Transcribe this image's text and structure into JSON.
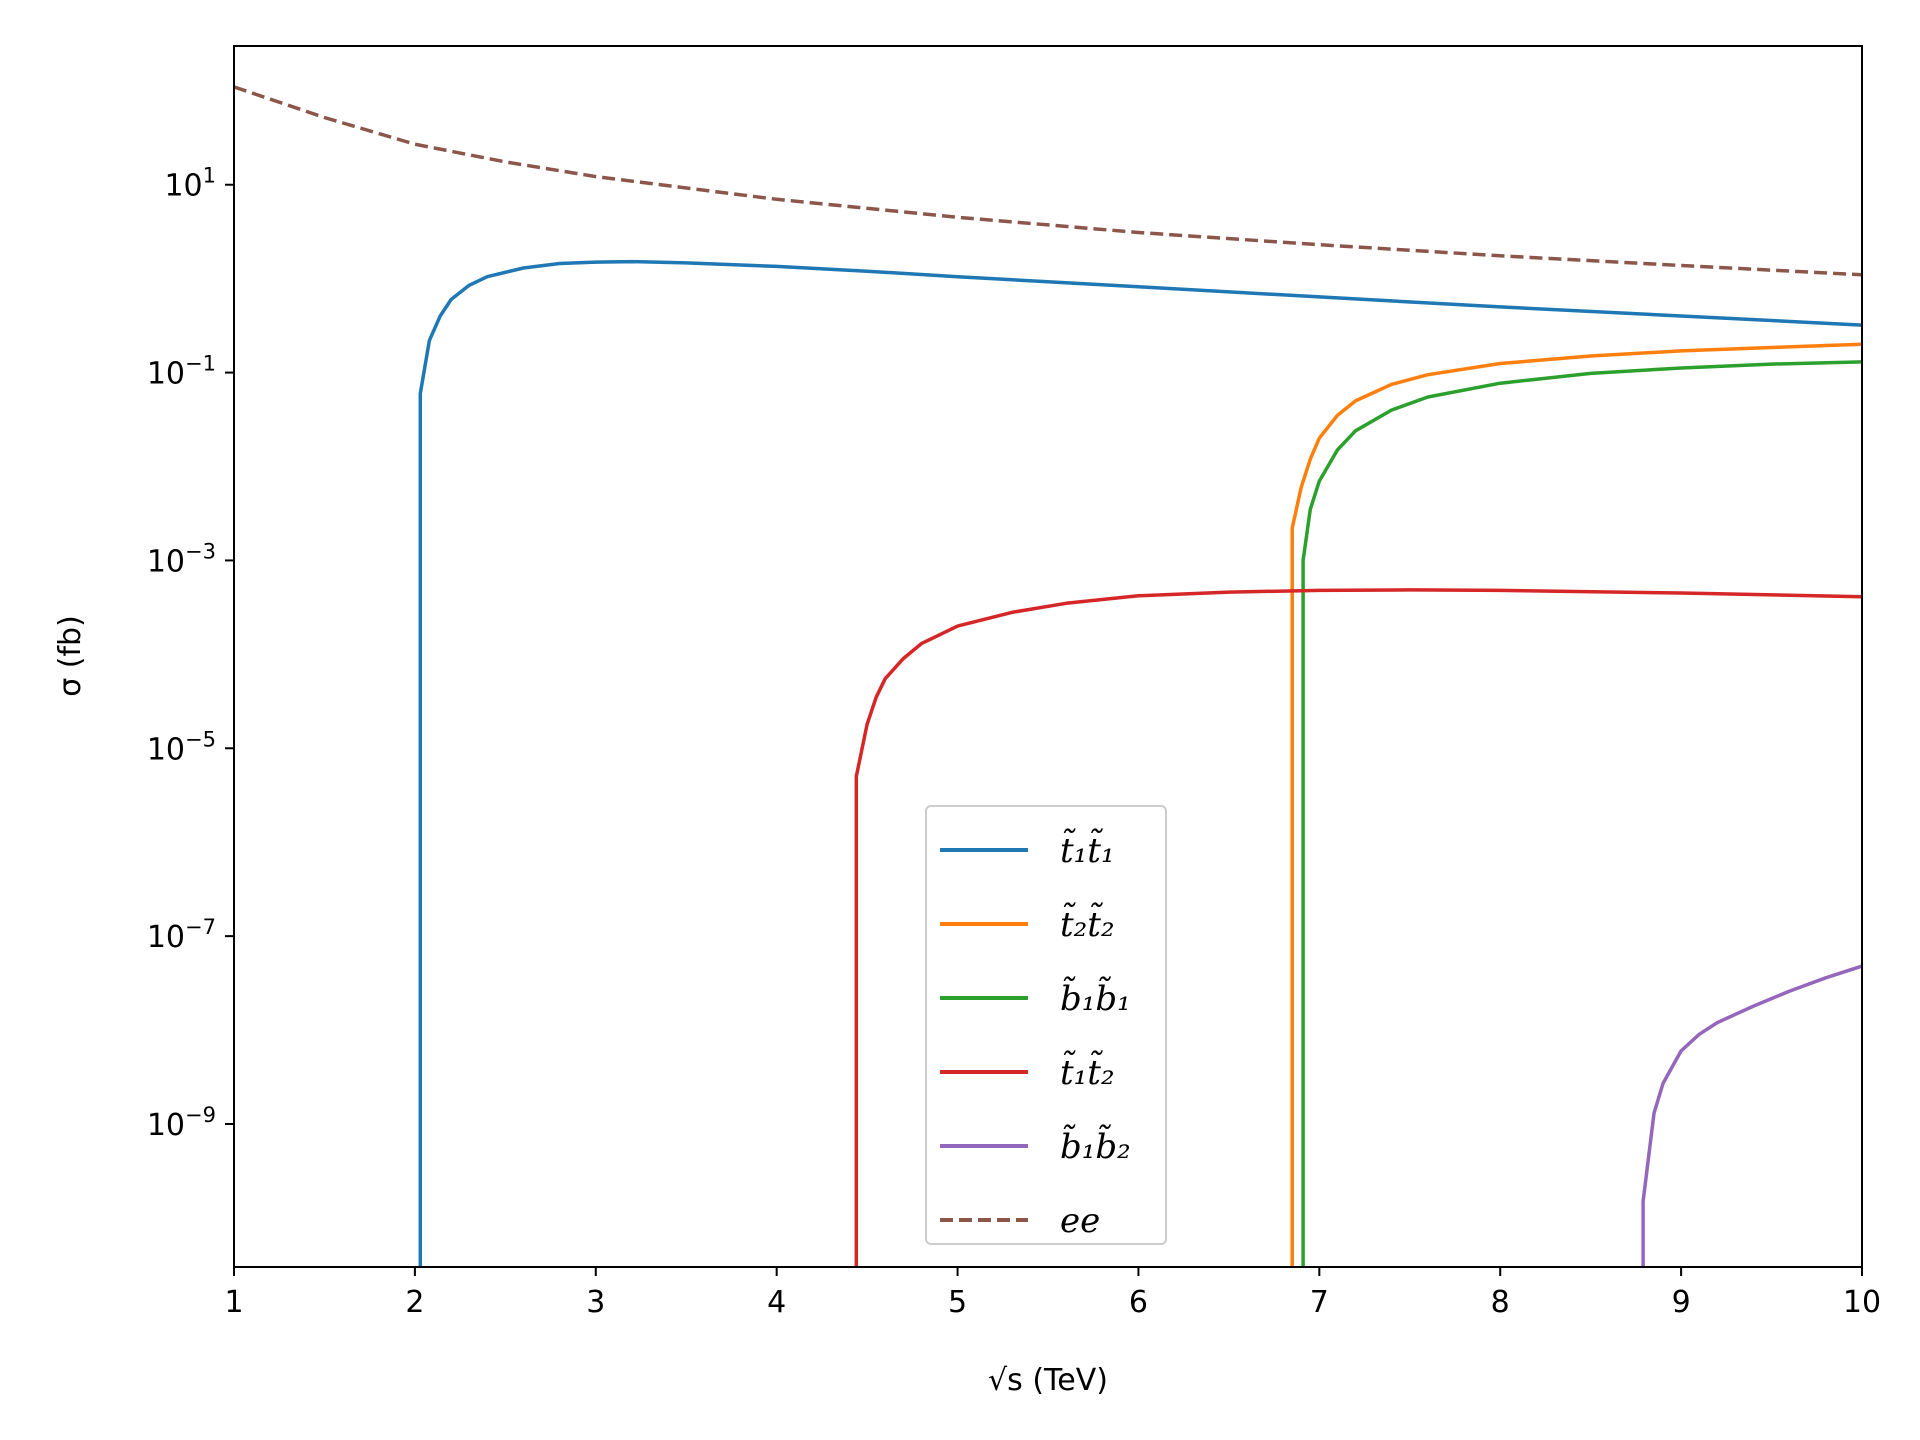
{
  "chart_data": {
    "type": "line",
    "xlabel": "√s (TeV)",
    "ylabel": "σ (fb)",
    "xlim": [
      1,
      10
    ],
    "ylim": [
      3e-11,
      300
    ],
    "yscale": "log",
    "xticks": [
      1,
      2,
      3,
      4,
      5,
      6,
      7,
      8,
      9,
      10
    ],
    "yticks": [
      {
        "value": 1e-09,
        "base": "10",
        "exp": "−9"
      },
      {
        "value": 1e-07,
        "base": "10",
        "exp": "−7"
      },
      {
        "value": 1e-05,
        "base": "10",
        "exp": "−5"
      },
      {
        "value": 0.001,
        "base": "10",
        "exp": "−3"
      },
      {
        "value": 0.1,
        "base": "10",
        "exp": "−1"
      },
      {
        "value": 10,
        "base": "10",
        "exp": "1"
      }
    ],
    "grid": false,
    "legend_position": "bottom-center",
    "series": [
      {
        "name": "t̃₁t̃₁",
        "color": "#1f77b4",
        "dash": "solid",
        "points": [
          [
            2.03,
            3e-11
          ],
          [
            2.03,
            0.06
          ],
          [
            2.08,
            0.22
          ],
          [
            2.14,
            0.4
          ],
          [
            2.2,
            0.6
          ],
          [
            2.3,
            0.85
          ],
          [
            2.4,
            1.05
          ],
          [
            2.6,
            1.3
          ],
          [
            2.8,
            1.45
          ],
          [
            3.0,
            1.5
          ],
          [
            3.2,
            1.52
          ],
          [
            3.5,
            1.47
          ],
          [
            4.0,
            1.35
          ],
          [
            4.5,
            1.2
          ],
          [
            5.0,
            1.05
          ],
          [
            6.0,
            0.82
          ],
          [
            7.0,
            0.64
          ],
          [
            8.0,
            0.5
          ],
          [
            9.0,
            0.4
          ],
          [
            10.0,
            0.32
          ]
        ]
      },
      {
        "name": "t̃₂t̃₂",
        "color": "#ff7f0e",
        "dash": "solid",
        "points": [
          [
            6.85,
            3e-11
          ],
          [
            6.85,
            0.0022
          ],
          [
            6.9,
            0.006
          ],
          [
            6.95,
            0.012
          ],
          [
            7.0,
            0.02
          ],
          [
            7.1,
            0.035
          ],
          [
            7.2,
            0.05
          ],
          [
            7.4,
            0.075
          ],
          [
            7.6,
            0.095
          ],
          [
            8.0,
            0.125
          ],
          [
            8.5,
            0.15
          ],
          [
            9.0,
            0.17
          ],
          [
            9.5,
            0.185
          ],
          [
            10.0,
            0.2
          ]
        ]
      },
      {
        "name": "b̃₁b̃₁",
        "color": "#2ca02c",
        "dash": "solid",
        "points": [
          [
            6.91,
            3e-11
          ],
          [
            6.91,
            0.001
          ],
          [
            6.95,
            0.0035
          ],
          [
            7.0,
            0.007
          ],
          [
            7.1,
            0.015
          ],
          [
            7.2,
            0.024
          ],
          [
            7.4,
            0.04
          ],
          [
            7.6,
            0.055
          ],
          [
            8.0,
            0.077
          ],
          [
            8.5,
            0.098
          ],
          [
            9.0,
            0.112
          ],
          [
            9.5,
            0.123
          ],
          [
            10.0,
            0.13
          ]
        ]
      },
      {
        "name": "t̃₁t̃₂",
        "color": "#d62728",
        "dash": "solid",
        "points": [
          [
            4.44,
            3e-11
          ],
          [
            4.44,
            5e-06
          ],
          [
            4.5,
            1.8e-05
          ],
          [
            4.55,
            3.5e-05
          ],
          [
            4.6,
            5.5e-05
          ],
          [
            4.7,
            9e-05
          ],
          [
            4.8,
            0.00013
          ],
          [
            5.0,
            0.0002
          ],
          [
            5.3,
            0.00028
          ],
          [
            5.6,
            0.00035
          ],
          [
            6.0,
            0.00042
          ],
          [
            6.5,
            0.00046
          ],
          [
            7.0,
            0.00048
          ],
          [
            7.5,
            0.000485
          ],
          [
            8.0,
            0.00048
          ],
          [
            9.0,
            0.00045
          ],
          [
            10.0,
            0.00041
          ]
        ]
      },
      {
        "name": "b̃₁b̃₂",
        "color": "#9467bd",
        "dash": "solid",
        "points": [
          [
            8.79,
            3e-11
          ],
          [
            8.79,
            1.5e-10
          ],
          [
            8.85,
            1.3e-09
          ],
          [
            8.9,
            2.7e-09
          ],
          [
            9.0,
            6e-09
          ],
          [
            9.1,
            9e-09
          ],
          [
            9.2,
            1.2e-08
          ],
          [
            9.4,
            1.8e-08
          ],
          [
            9.6,
            2.6e-08
          ],
          [
            9.8,
            3.6e-08
          ],
          [
            10.0,
            4.8e-08
          ]
        ]
      },
      {
        "name": "ee",
        "color": "#8c564b",
        "dash": "dashed",
        "points": [
          [
            1.0,
            110
          ],
          [
            1.5,
            52
          ],
          [
            2.0,
            27
          ],
          [
            2.5,
            17.5
          ],
          [
            3.0,
            12.2
          ],
          [
            4.0,
            7
          ],
          [
            5.0,
            4.5
          ],
          [
            6.0,
            3.1
          ],
          [
            7.0,
            2.3
          ],
          [
            8.0,
            1.75
          ],
          [
            9.0,
            1.38
          ],
          [
            10.0,
            1.1
          ]
        ]
      }
    ]
  }
}
